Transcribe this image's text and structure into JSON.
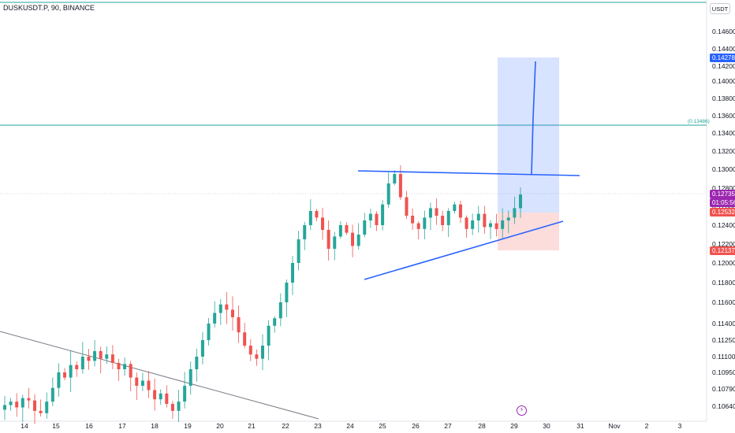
{
  "header": {
    "symbol_line": "DUSKUSDT.P, 90, BINANCE"
  },
  "axis": {
    "currency": "USDT",
    "y_ticks": [
      "0.14600",
      "0.14400",
      "0.14200",
      "0.14000",
      "0.13800",
      "0.13600",
      "0.13400",
      "0.13200",
      "0.13000",
      "0.12800",
      "0.12600",
      "0.12400",
      "0.12200",
      "0.12000",
      "0.11800",
      "0.11600",
      "0.11400",
      "0.11250",
      "0.11100",
      "0.10950",
      "0.10790",
      "0.10640"
    ],
    "x_ticks": [
      "14",
      "15",
      "16",
      "17",
      "18",
      "19",
      "20",
      "21",
      "22",
      "23",
      "24",
      "25",
      "26",
      "27",
      "28",
      "29",
      "30",
      "31",
      "Nov",
      "2",
      "3"
    ]
  },
  "price_tags": {
    "target": "0.14278",
    "current": "0.12735",
    "countdown": "01:05:56",
    "entry": "0.12532",
    "stop": "0.12137"
  },
  "hline_label": "(0.13486)",
  "colors": {
    "up": "#26a69a",
    "down": "#ef5350",
    "trendline": "#2962ff",
    "target_tag": "#2962ff",
    "current_tag": "#9c27b0",
    "stop_tag": "#ef5350",
    "hline": "#26a69a"
  },
  "icons": {
    "flash": "lightning-icon"
  },
  "chart_data": {
    "type": "candlestick",
    "series": [
      {
        "name": "",
        "values": [
          0.1065,
          0.1068,
          0.1063,
          0.1071,
          0.1069,
          0.106,
          0.1058,
          0.1068,
          0.108,
          0.1095,
          0.109,
          0.1102,
          0.1098,
          0.111,
          0.1106,
          0.1115,
          0.1108,
          0.1112,
          0.1104,
          0.1098,
          0.1103,
          0.109,
          0.1082,
          0.1087,
          0.1078,
          0.107,
          0.1075,
          0.1066,
          0.106,
          0.1068,
          0.1082,
          0.1098,
          0.111,
          0.1125,
          0.114,
          0.115,
          0.1158,
          0.1153,
          0.1146,
          0.1132,
          0.112,
          0.1112,
          0.1108,
          0.112,
          0.1138,
          0.1145,
          0.116,
          0.118,
          0.12,
          0.1225,
          0.124,
          0.1255,
          0.1248,
          0.1235,
          0.1215,
          0.1228,
          0.124,
          0.1232,
          0.1218,
          0.123,
          0.1245,
          0.1252,
          0.124,
          0.1262,
          0.1285,
          0.1295,
          0.127,
          0.125,
          0.1242,
          0.1236,
          0.1248,
          0.1258,
          0.125,
          0.124,
          0.1255,
          0.1262,
          0.1248,
          0.1236,
          0.1245,
          0.1252,
          0.1238,
          0.1242,
          0.1236,
          0.1245,
          0.1248,
          0.1258,
          0.1273
        ]
      }
    ],
    "levels": {
      "target": 0.14278,
      "hline": 0.13486,
      "current": 0.12735,
      "entry": 0.12532,
      "stop": 0.12137
    }
  }
}
